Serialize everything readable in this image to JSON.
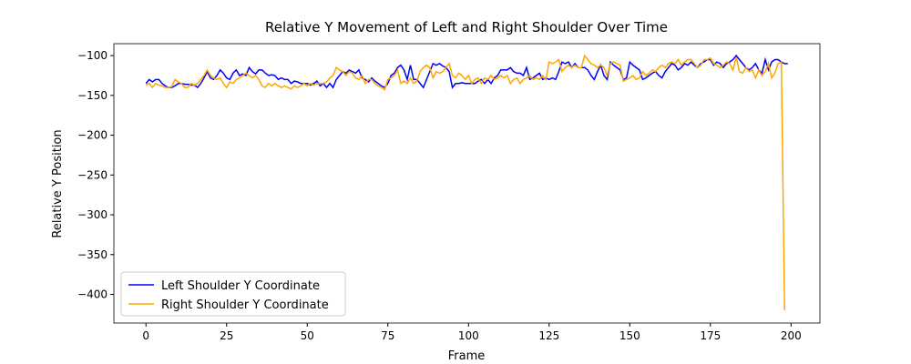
{
  "chart_data": {
    "type": "line",
    "title": "Relative Y Movement of Left and Right Shoulder Over Time",
    "x_label": "Frame",
    "y_label": "Relative Y Position",
    "x": [
      0,
      1,
      2,
      3,
      4,
      5,
      6,
      7,
      8,
      9,
      10,
      11,
      12,
      13,
      14,
      15,
      16,
      17,
      18,
      19,
      20,
      21,
      22,
      23,
      24,
      25,
      26,
      27,
      28,
      29,
      30,
      31,
      32,
      33,
      34,
      35,
      36,
      37,
      38,
      39,
      40,
      41,
      42,
      43,
      44,
      45,
      46,
      47,
      48,
      49,
      50,
      51,
      52,
      53,
      54,
      55,
      56,
      57,
      58,
      59,
      60,
      61,
      62,
      63,
      64,
      65,
      66,
      67,
      68,
      69,
      70,
      71,
      72,
      73,
      74,
      75,
      76,
      77,
      78,
      79,
      80,
      81,
      82,
      83,
      84,
      85,
      86,
      87,
      88,
      89,
      90,
      91,
      92,
      93,
      94,
      95,
      96,
      97,
      98,
      99,
      100,
      101,
      102,
      103,
      104,
      105,
      106,
      107,
      108,
      109,
      110,
      111,
      112,
      113,
      114,
      115,
      116,
      117,
      118,
      119,
      120,
      121,
      122,
      123,
      124,
      125,
      126,
      127,
      128,
      129,
      130,
      131,
      132,
      133,
      134,
      135,
      136,
      137,
      138,
      139,
      140,
      141,
      142,
      143,
      144,
      145,
      146,
      147,
      148,
      149,
      150,
      151,
      152,
      153,
      154,
      155,
      156,
      157,
      158,
      159,
      160,
      161,
      162,
      163,
      164,
      165,
      166,
      167,
      168,
      169,
      170,
      171,
      172,
      173,
      174,
      175,
      176,
      177,
      178,
      179,
      180,
      181,
      182,
      183,
      184,
      185,
      186,
      187,
      188,
      189,
      190,
      191,
      192,
      193,
      194,
      195,
      196,
      197,
      198,
      199
    ],
    "series": [
      {
        "name": "Left Shoulder Y Coordinate",
        "color": "#0000ff",
        "values": [
          -135,
          -130,
          -133,
          -130,
          -130,
          -135,
          -138,
          -140,
          -140,
          -138,
          -135,
          -135,
          -136,
          -136,
          -137,
          -137,
          -140,
          -135,
          -128,
          -120,
          -128,
          -130,
          -125,
          -118,
          -122,
          -128,
          -130,
          -122,
          -118,
          -125,
          -123,
          -125,
          -115,
          -120,
          -123,
          -118,
          -118,
          -122,
          -125,
          -124,
          -125,
          -130,
          -128,
          -130,
          -130,
          -135,
          -132,
          -133,
          -135,
          -135,
          -135,
          -137,
          -135,
          -132,
          -138,
          -135,
          -140,
          -135,
          -140,
          -130,
          -125,
          -120,
          -122,
          -118,
          -120,
          -122,
          -118,
          -128,
          -130,
          -133,
          -128,
          -132,
          -135,
          -138,
          -140,
          -135,
          -125,
          -122,
          -115,
          -112,
          -118,
          -130,
          -112,
          -130,
          -130,
          -135,
          -140,
          -130,
          -120,
          -110,
          -112,
          -110,
          -113,
          -115,
          -120,
          -140,
          -135,
          -135,
          -134,
          -135,
          -135,
          -135,
          -135,
          -132,
          -130,
          -135,
          -130,
          -135,
          -128,
          -125,
          -118,
          -118,
          -118,
          -115,
          -120,
          -122,
          -122,
          -125,
          -115,
          -130,
          -128,
          -125,
          -122,
          -130,
          -128,
          -130,
          -128,
          -130,
          -120,
          -108,
          -110,
          -108,
          -115,
          -110,
          -115,
          -115,
          -115,
          -118,
          -125,
          -130,
          -120,
          -112,
          -125,
          -130,
          -108,
          -112,
          -115,
          -118,
          -130,
          -128,
          -108,
          -112,
          -115,
          -118,
          -130,
          -128,
          -125,
          -122,
          -120,
          -125,
          -128,
          -120,
          -115,
          -110,
          -112,
          -118,
          -115,
          -110,
          -112,
          -108,
          -112,
          -115,
          -110,
          -108,
          -105,
          -105,
          -112,
          -108,
          -110,
          -115,
          -110,
          -108,
          -105,
          -100,
          -105,
          -110,
          -115,
          -118,
          -115,
          -110,
          -118,
          -122,
          -105,
          -118,
          -108,
          -105,
          -105,
          -108,
          -110,
          -110
        ]
      },
      {
        "name": "Right Shoulder Y Coordinate",
        "color": "#ffa500",
        "values": [
          -137,
          -135,
          -140,
          -135,
          -137,
          -138,
          -140,
          -140,
          -139,
          -130,
          -133,
          -135,
          -140,
          -140,
          -135,
          -137,
          -135,
          -130,
          -125,
          -118,
          -125,
          -128,
          -130,
          -128,
          -135,
          -140,
          -133,
          -135,
          -130,
          -128,
          -125,
          -122,
          -125,
          -128,
          -125,
          -130,
          -138,
          -140,
          -135,
          -138,
          -135,
          -138,
          -140,
          -138,
          -140,
          -142,
          -138,
          -140,
          -138,
          -135,
          -138,
          -135,
          -137,
          -135,
          -135,
          -135,
          -133,
          -128,
          -125,
          -115,
          -118,
          -120,
          -125,
          -120,
          -122,
          -128,
          -130,
          -125,
          -135,
          -130,
          -130,
          -135,
          -138,
          -140,
          -143,
          -130,
          -128,
          -125,
          -118,
          -135,
          -132,
          -135,
          -128,
          -135,
          -132,
          -120,
          -115,
          -112,
          -115,
          -128,
          -120,
          -122,
          -120,
          -115,
          -110,
          -125,
          -128,
          -122,
          -125,
          -130,
          -125,
          -135,
          -130,
          -128,
          -135,
          -128,
          -130,
          -125,
          -130,
          -128,
          -125,
          -128,
          -125,
          -135,
          -130,
          -128,
          -135,
          -130,
          -128,
          -125,
          -130,
          -128,
          -130,
          -125,
          -130,
          -108,
          -110,
          -108,
          -105,
          -120,
          -115,
          -112,
          -115,
          -112,
          -115,
          -115,
          -100,
          -105,
          -110,
          -112,
          -115,
          -112,
          -115,
          -125,
          -110,
          -108,
          -110,
          -112,
          -132,
          -130,
          -128,
          -125,
          -130,
          -128,
          -120,
          -125,
          -122,
          -118,
          -120,
          -115,
          -112,
          -115,
          -110,
          -108,
          -110,
          -105,
          -112,
          -108,
          -105,
          -105,
          -110,
          -115,
          -112,
          -105,
          -105,
          -103,
          -110,
          -112,
          -115,
          -112,
          -108,
          -110,
          -118,
          -102,
          -120,
          -122,
          -115,
          -120,
          -118,
          -128,
          -118,
          -125,
          -120,
          -110,
          -128,
          -122,
          -110,
          -108,
          -420,
          null
        ]
      }
    ],
    "xlim": [
      -9.95,
      208.95
    ],
    "ylim": [
      -436,
      -85
    ],
    "xticks": [
      0,
      25,
      50,
      75,
      100,
      125,
      150,
      175,
      200
    ],
    "yticks": [
      {
        "value": -400,
        "label": "−400"
      },
      {
        "value": -350,
        "label": "−350"
      },
      {
        "value": -300,
        "label": "−300"
      },
      {
        "value": -250,
        "label": "−250"
      },
      {
        "value": -200,
        "label": "−200"
      },
      {
        "value": -150,
        "label": "−150"
      },
      {
        "value": -100,
        "label": "−100"
      }
    ],
    "legend": "lower left",
    "grid": false
  }
}
